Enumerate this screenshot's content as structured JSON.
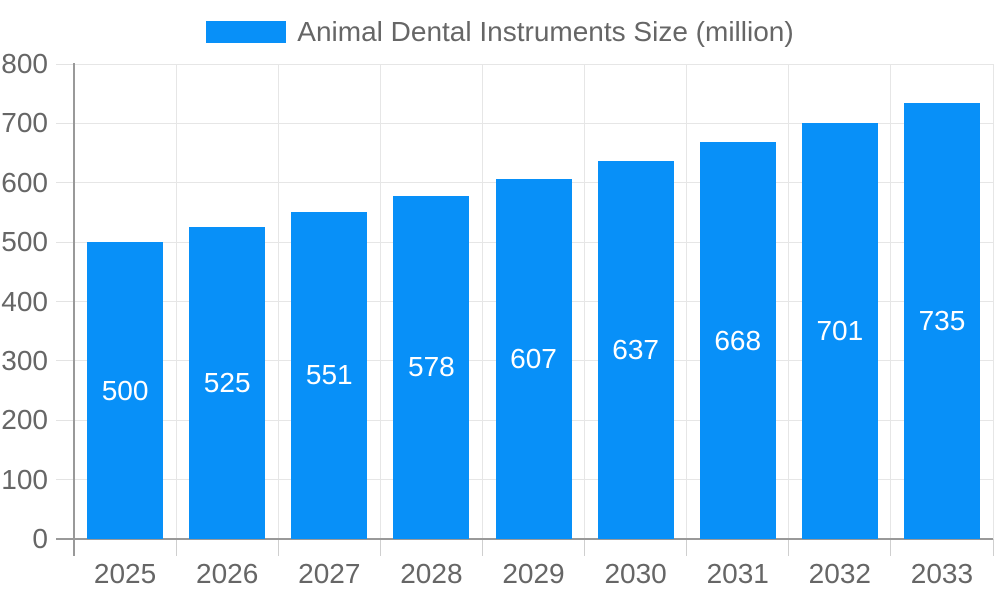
{
  "legend": {
    "label": "Animal Dental Instruments Size (million)"
  },
  "colors": {
    "bar": "#0890f8",
    "grid": "#e6e6e6",
    "axis": "#999999",
    "x_tick": "#cfcfcf",
    "y_tick": "#e3e3e3",
    "label_text": "#666666",
    "value_text": "#ffffff",
    "background": "#ffffff"
  },
  "chart_data": {
    "type": "bar",
    "title": "",
    "xlabel": "",
    "ylabel": "",
    "categories": [
      "2025",
      "2026",
      "2027",
      "2028",
      "2029",
      "2030",
      "2031",
      "2032",
      "2033"
    ],
    "series": [
      {
        "name": "Animal Dental Instruments Size (million)",
        "values": [
          500,
          525,
          551,
          578,
          607,
          637,
          668,
          701,
          735
        ]
      }
    ],
    "value_labels_shown": true,
    "value_label_position": "inside-center",
    "ylim": [
      0,
      800
    ],
    "yticks": [
      0,
      100,
      200,
      300,
      400,
      500,
      600,
      700,
      800
    ],
    "grid": true,
    "legend_position": "top-center"
  }
}
